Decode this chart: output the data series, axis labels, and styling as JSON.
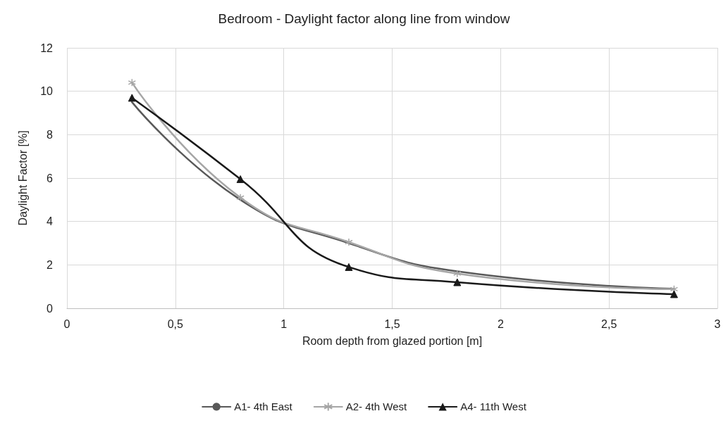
{
  "chart_data": {
    "type": "line",
    "title": "Bedroom - Daylight factor along line from window",
    "xlabel": "Room depth from glazed portion [m]",
    "ylabel": "Daylight Factor [%]",
    "x": [
      0.3,
      0.8,
      1.3,
      1.8,
      2.8
    ],
    "series": [
      {
        "name": "A1- 4th East",
        "color": "#595959",
        "marker": "none",
        "values": [
          9.5,
          5.0,
          3.0,
          1.7,
          0.9
        ]
      },
      {
        "name": "A2- 4th West",
        "color": "#a6a6a6",
        "marker": "cross",
        "values": [
          10.4,
          5.1,
          3.05,
          1.6,
          0.88
        ]
      },
      {
        "name": "A4- 11th West",
        "color": "#1a1a1a",
        "marker": "triangle",
        "values": [
          9.7,
          5.95,
          1.9,
          1.2,
          0.65
        ]
      }
    ],
    "xlim": [
      0,
      3
    ],
    "xticks": [
      0,
      {
        "value": 0.5,
        "label": "0,5"
      },
      1,
      {
        "value": 1.5,
        "label": "1,5"
      },
      2,
      {
        "value": 2.5,
        "label": "2,5"
      },
      3
    ],
    "ylim": [
      0,
      12
    ],
    "yticks": [
      0,
      2,
      4,
      6,
      8,
      10,
      12
    ],
    "grid": true,
    "legend": "bottom",
    "line_style": "solid"
  }
}
